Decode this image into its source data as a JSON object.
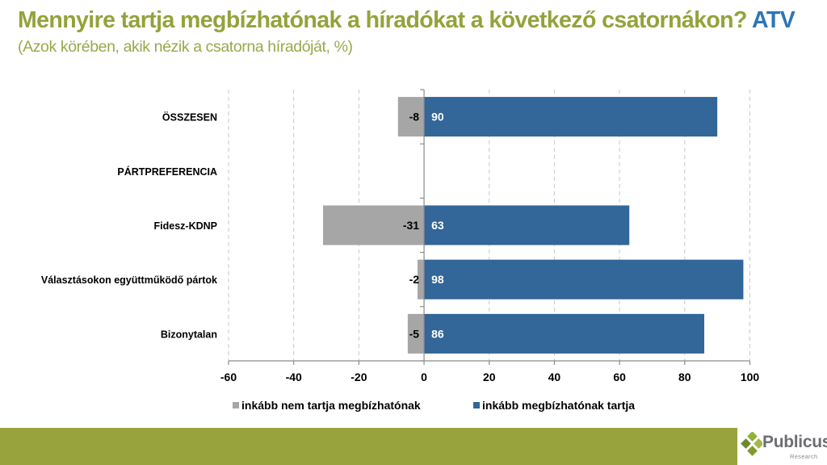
{
  "header": {
    "title": "Mennyire tartja megbízhatónak a híradókat a következő csatornákon?",
    "title_accent": "ATV",
    "subtitle": "(Azok körében, akik nézik a csatorna híradóját, %)"
  },
  "chart_data": {
    "type": "bar",
    "orientation": "horizontal",
    "stacked": "diverging",
    "title": "Mennyire tartja megbízhatónak a híradókat a következő csatornákon? ATV",
    "subtitle": "(Azok körében, akik nézik a csatorna híradóját, %)",
    "categories": [
      "ÖSSZESEN",
      "PÁRTPREFERENCIA",
      "Fidesz-KDNP",
      "Választásokon együttműködő pártok",
      "Bizonytalan"
    ],
    "series": [
      {
        "name": "inkább nem tartja megbízhatónak",
        "color": "#a6a6a6",
        "values": [
          -8,
          null,
          -31,
          -2,
          -5
        ],
        "labels": [
          "-8",
          "",
          "-31",
          "-2",
          "-5"
        ]
      },
      {
        "name": "inkább megbízhatónak tartja",
        "color": "#336699",
        "values": [
          90,
          null,
          63,
          98,
          86
        ],
        "labels": [
          "90",
          "",
          "63",
          "98",
          "86"
        ]
      }
    ],
    "xlim": [
      -60,
      100
    ],
    "xticks": [
      -60,
      -40,
      -20,
      0,
      20,
      40,
      60,
      80,
      100
    ],
    "xtick_labels": [
      "-60",
      "-40",
      "-20",
      "0",
      "20",
      "40",
      "60",
      "80",
      "100"
    ],
    "grid": "vertical dashed",
    "legend": "bottom",
    "xlabel": "",
    "ylabel": ""
  },
  "colors": {
    "title": "#95a23a",
    "accent": "#2e75b6",
    "footer": "#98a33e"
  },
  "logo": {
    "name": "Publicus",
    "sub": "Research"
  }
}
